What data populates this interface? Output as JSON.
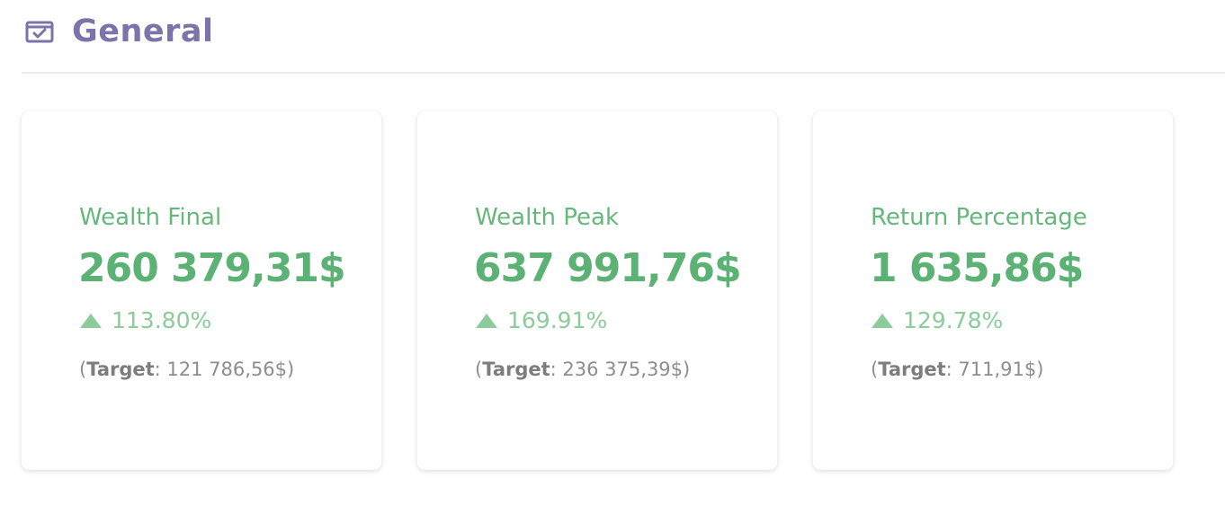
{
  "header": {
    "icon": "calendar-check-icon",
    "title": "General"
  },
  "colors": {
    "header": "#7c73a8",
    "label": "#66b77b",
    "value": "#5cb274",
    "change": "#8ccb9a",
    "target": "#8d8d8d"
  },
  "cards": [
    {
      "label": "Wealth Final",
      "value": "260 379,31$",
      "change_icon": "arrow-up-icon",
      "change": "113.80%",
      "target_open": "(",
      "target_label": "Target",
      "target_value": ": 121 786,56$)"
    },
    {
      "label": "Wealth Peak",
      "value": "637 991,76$",
      "change_icon": "arrow-up-icon",
      "change": "169.91%",
      "target_open": "(",
      "target_label": "Target",
      "target_value": ": 236 375,39$)"
    },
    {
      "label": "Return Percentage",
      "value": "1 635,86$",
      "change_icon": "arrow-up-icon",
      "change": "129.78%",
      "target_open": "(",
      "target_label": "Target",
      "target_value": ": 711,91$)"
    }
  ]
}
